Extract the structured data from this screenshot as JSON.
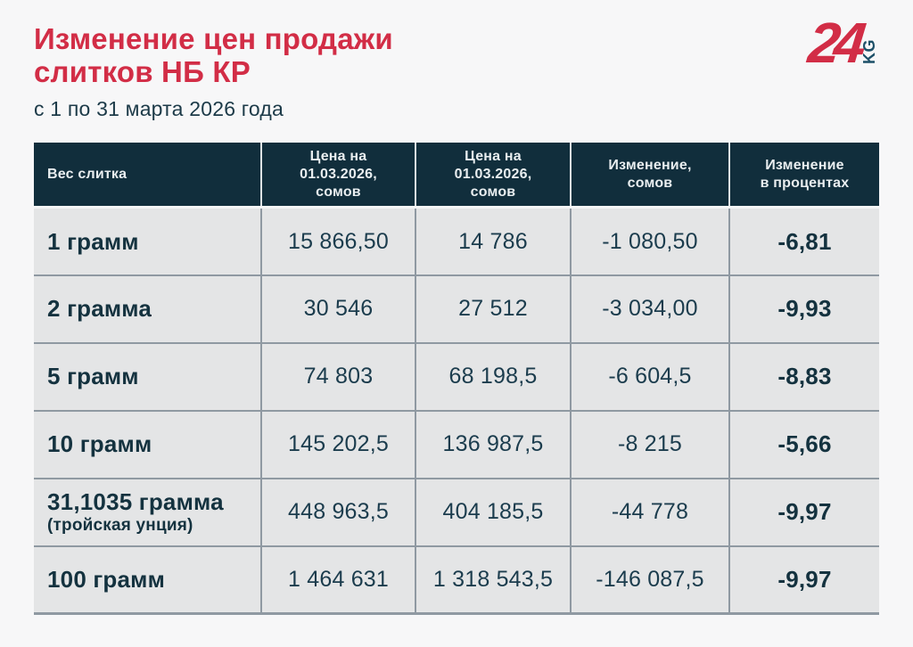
{
  "page": {
    "title_line1": "Изменение цен продажи",
    "title_line2": "слитков НБ КР",
    "subtitle": "с 1 по 31 марта 2026 года"
  },
  "logo": {
    "number": "24",
    "suffix": "KG"
  },
  "colors": {
    "accent_red": "#d22d46",
    "dark_teal_header_bg": "#112e3c",
    "text_dark_teal": "#1b3c4d",
    "row_bg": "#e4e5e6",
    "grid_line": "#8f99a2",
    "page_bg": "#f7f7f8",
    "logo_kg_blue": "#1d5068"
  },
  "table": {
    "headers": {
      "weight": "Вес слитка",
      "price_start": "Цена на\n01.03.2026,\nсомов",
      "price_end": "Цена на\n01.03.2026,\nсомов",
      "change_som": "Изменение,\nсомов",
      "change_pct": "Изменение\nв процентах"
    },
    "rows": [
      {
        "weight": "1 грамм",
        "weight_note": "",
        "price_start": "15 866,50",
        "price_end": "14 786",
        "change_som": "-1 080,50",
        "change_pct": "-6,81"
      },
      {
        "weight": "2 грамма",
        "weight_note": "",
        "price_start": "30 546",
        "price_end": "27 512",
        "change_som": "-3 034,00",
        "change_pct": "-9,93"
      },
      {
        "weight": "5 грамм",
        "weight_note": "",
        "price_start": "74 803",
        "price_end": "68 198,5",
        "change_som": "-6 604,5",
        "change_pct": "-8,83"
      },
      {
        "weight": "10 грамм",
        "weight_note": "",
        "price_start": "145 202,5",
        "price_end": "136 987,5",
        "change_som": "-8 215",
        "change_pct": "-5,66"
      },
      {
        "weight": "31,1035 грамма",
        "weight_note": "(тройская унция)",
        "price_start": "448 963,5",
        "price_end": "404 185,5",
        "change_som": "-44 778",
        "change_pct": "-9,97"
      },
      {
        "weight": "100 грамм",
        "weight_note": "",
        "price_start": "1 464 631",
        "price_end": "1 318 543,5",
        "change_som": "-146 087,5",
        "change_pct": "-9,97"
      }
    ]
  },
  "chart_data": {
    "type": "table",
    "title": "Изменение цен продажи слитков НБ КР",
    "subtitle": "с 1 по 31 марта 2026 года",
    "columns": [
      "Вес слитка",
      "Цена на 01.03.2026, сомов",
      "Цена на 01.03.2026, сомов",
      "Изменение, сомов",
      "Изменение в процентах"
    ],
    "rows": [
      [
        "1 грамм",
        "15 866,50",
        "14 786",
        "-1 080,50",
        "-6,81"
      ],
      [
        "2 грамма",
        "30 546",
        "27 512",
        "-3 034,00",
        "-9,93"
      ],
      [
        "5 грамм",
        "74 803",
        "68 198,5",
        "-6 604,5",
        "-8,83"
      ],
      [
        "10 грамм",
        "145 202,5",
        "136 987,5",
        "-8 215",
        "-5,66"
      ],
      [
        "31,1035 грамма (тройская унция)",
        "448 963,5",
        "404 185,5",
        "-44 778",
        "-9,97"
      ],
      [
        "100 грамм",
        "1 464 631",
        "1 318 543,5",
        "-146 087,5",
        "-9,97"
      ]
    ]
  }
}
